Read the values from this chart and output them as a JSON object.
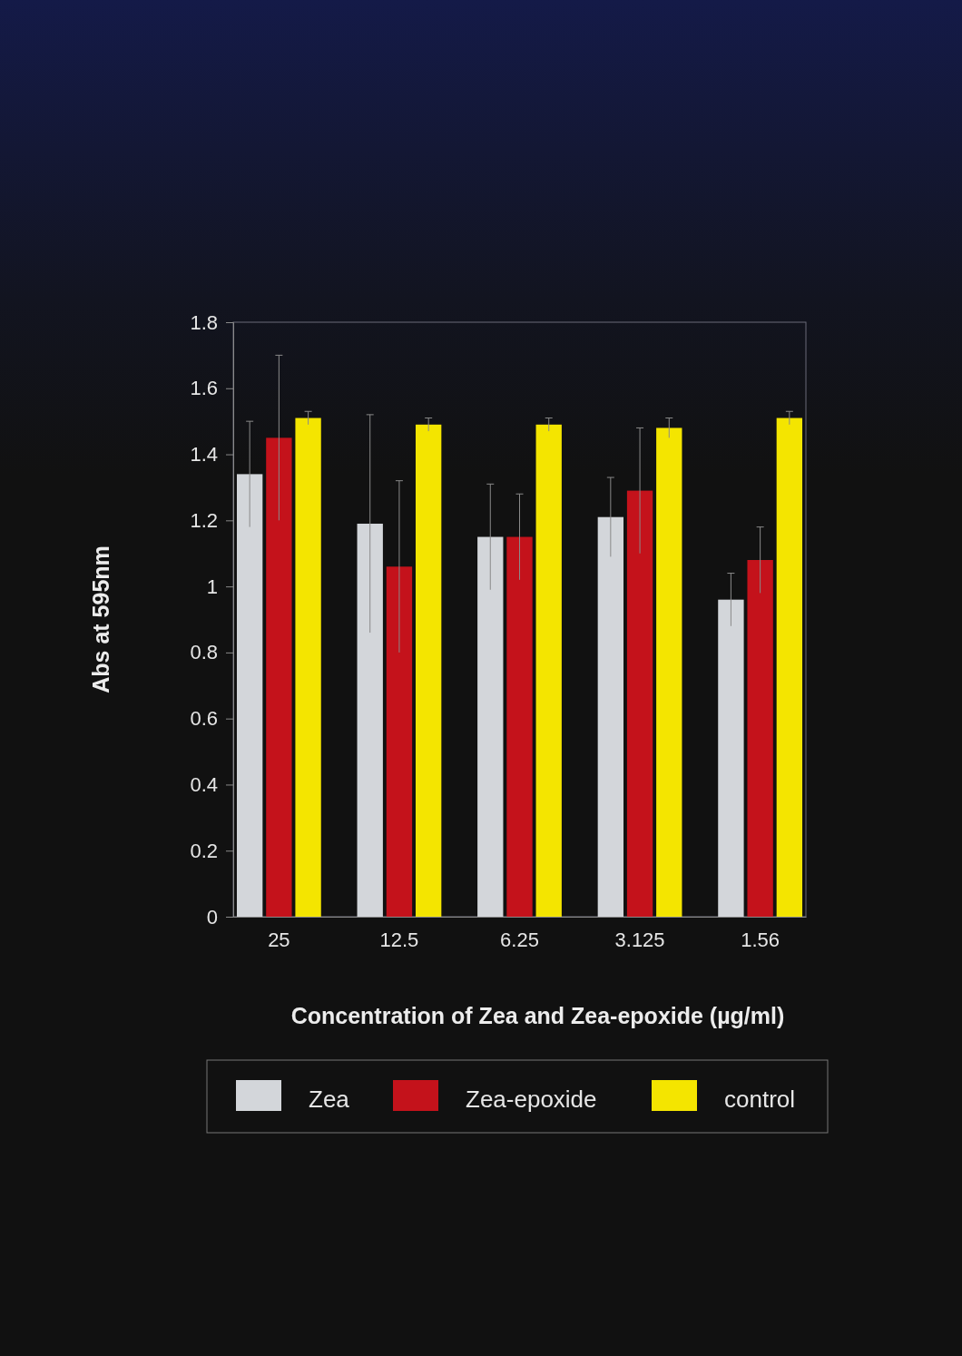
{
  "chart_data": {
    "type": "bar",
    "xlabel": "Concentration of Zea and Zea-epoxide (µg/ml)",
    "ylabel": "Abs at 595nm",
    "categories": [
      "25",
      "12.5",
      "6.25",
      "3.125",
      "1.56"
    ],
    "series": [
      {
        "name": "Zea",
        "color": "#d3d6da",
        "values": [
          1.34,
          1.19,
          1.15,
          1.21,
          0.96
        ],
        "errors": [
          0.16,
          0.33,
          0.16,
          0.12,
          0.08
        ]
      },
      {
        "name": "Zea-epoxide",
        "color": "#c4121b",
        "values": [
          1.45,
          1.06,
          1.15,
          1.29,
          1.08
        ],
        "errors": [
          0.25,
          0.26,
          0.13,
          0.19,
          0.1
        ]
      },
      {
        "name": "control",
        "color": "#f4e500",
        "values": [
          1.51,
          1.49,
          1.49,
          1.48,
          1.51
        ],
        "errors": [
          0.02,
          0.02,
          0.02,
          0.03,
          0.02
        ]
      }
    ],
    "ylim": [
      0,
      1.8
    ],
    "yticks": [
      0,
      0.2,
      0.4,
      0.6,
      0.8,
      1,
      1.2,
      1.4,
      1.6,
      1.8
    ],
    "grid": false,
    "legend": "bottom"
  }
}
